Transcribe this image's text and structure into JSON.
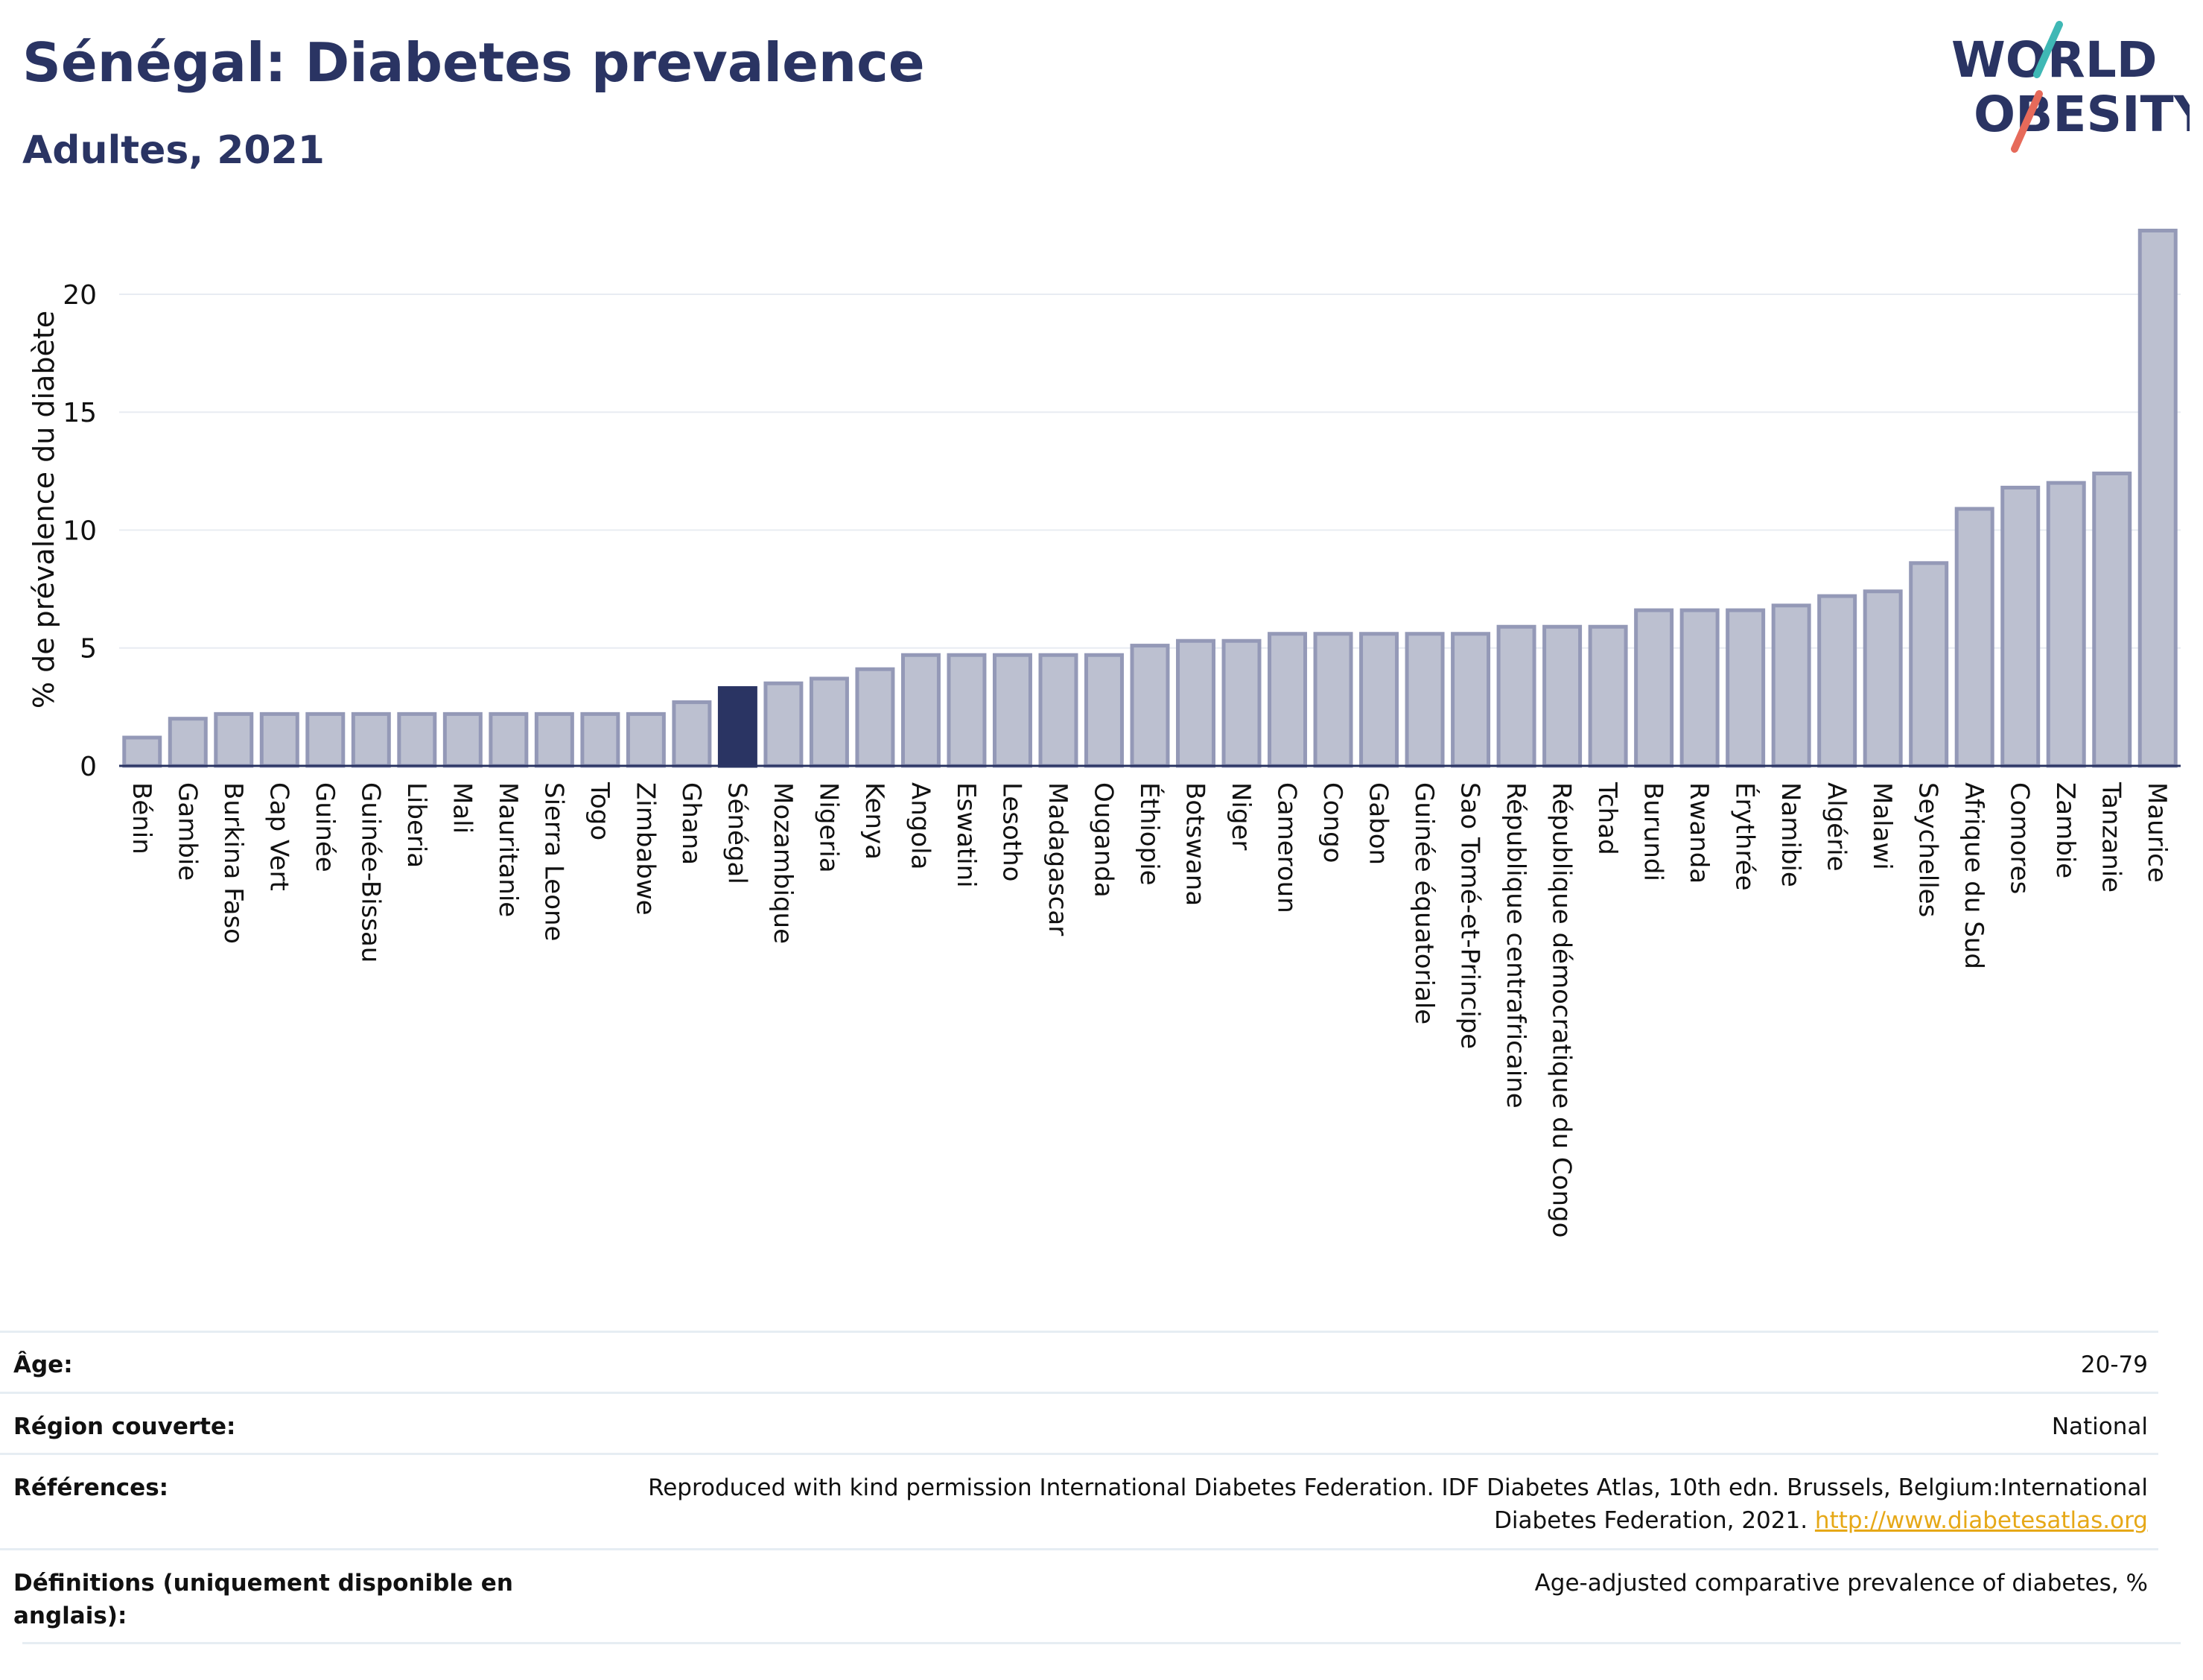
{
  "title": "Sénégal: Diabetes prevalence",
  "subtitle": "Adultes, 2021",
  "logo": {
    "line1": "WORLD",
    "line2": "OBESITY"
  },
  "colors": {
    "bar": "#bcc0d0",
    "bar_stroke": "#9499b7",
    "highlight": "#2a3463",
    "text": "#2a3463",
    "grid": "#e8ecf2",
    "link": "#e6a817"
  },
  "chart_data": {
    "type": "bar",
    "ylabel": "% de prévalence du diabète",
    "ylim": [
      0,
      23
    ],
    "yticks": [
      0,
      5,
      10,
      15,
      20
    ],
    "grid": true,
    "highlight": "Sénégal",
    "categories": [
      "Bénin",
      "Gambie",
      "Burkina Faso",
      "Cap Vert",
      "Guinée",
      "Guinée-Bissau",
      "Liberia",
      "Mali",
      "Mauritanie",
      "Sierra Leone",
      "Togo",
      "Zimbabwe",
      "Ghana",
      "Sénégal",
      "Mozambique",
      "Nigeria",
      "Kenya",
      "Angola",
      "Eswatini",
      "Lesotho",
      "Madagascar",
      "Ouganda",
      "Éthiopie",
      "Botswana",
      "Niger",
      "Cameroun",
      "Congo",
      "Gabon",
      "Guinée équatoriale",
      "Sao Tomé-et-Principe",
      "République centrafricaine",
      "République démocratique du Congo",
      "Tchad",
      "Burundi",
      "Rwanda",
      "Érythrée",
      "Namibie",
      "Algérie",
      "Malawi",
      "Seychelles",
      "Afrique du Sud",
      "Comores",
      "Zambie",
      "Tanzanie",
      "Maurice"
    ],
    "values": [
      1.2,
      2.0,
      2.2,
      2.2,
      2.2,
      2.2,
      2.2,
      2.2,
      2.2,
      2.2,
      2.2,
      2.2,
      2.7,
      3.3,
      3.5,
      3.7,
      4.1,
      4.7,
      4.7,
      4.7,
      4.7,
      4.7,
      5.1,
      5.3,
      5.3,
      5.6,
      5.6,
      5.6,
      5.6,
      5.6,
      5.9,
      5.9,
      5.9,
      6.6,
      6.6,
      6.6,
      6.8,
      7.2,
      7.4,
      8.6,
      10.9,
      11.8,
      12.0,
      12.4,
      22.7
    ]
  },
  "meta": {
    "age_label": "Âge:",
    "age_value": "20-79",
    "region_label": "Région couverte:",
    "region_value": "National",
    "refs_label": "Références:",
    "refs_line1": "Reproduced with kind permission International Diabetes Federation.  IDF Diabetes Atlas, 10th edn. Brussels, Belgium:International",
    "refs_line2": "Diabetes Federation, 2021. ",
    "refs_link": "http://www.diabetesatlas.org",
    "def_label_line1": "Définitions (uniquement disponible en",
    "def_label_line2": "anglais):",
    "def_value": "Age-adjusted comparative prevalence of diabetes, %"
  }
}
